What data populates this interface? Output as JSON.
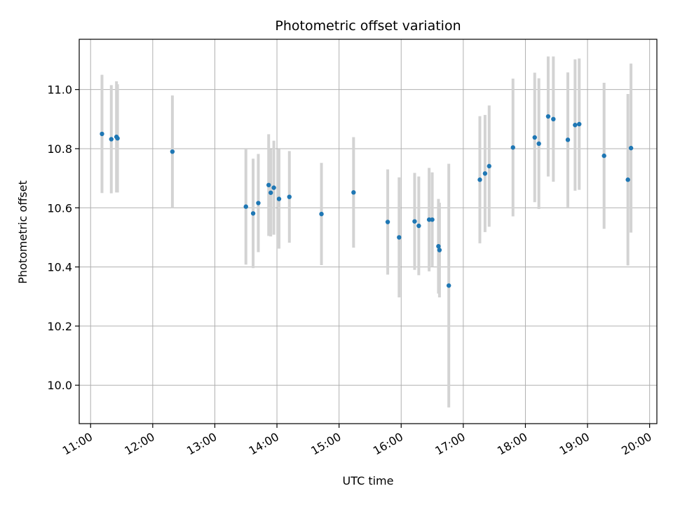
{
  "chart_data": {
    "type": "scatter",
    "title": "Photometric offset variation",
    "xlabel": "UTC time",
    "ylabel": "Photometric offset",
    "xlim": [
      "10:49",
      "20:07"
    ],
    "ylim": [
      9.87,
      11.17
    ],
    "grid": true,
    "error_bar_color": "#d3d3d3",
    "point_color": "#1f77b4",
    "x_ticks": [
      "11:00",
      "12:00",
      "13:00",
      "14:00",
      "15:00",
      "16:00",
      "17:00",
      "18:00",
      "19:00",
      "20:00"
    ],
    "y_ticks": [
      10.0,
      10.2,
      10.4,
      10.6,
      10.8,
      11.0
    ],
    "y_tick_labels": [
      "10.0",
      "10.2",
      "10.4",
      "10.6",
      "10.8",
      "11.0"
    ],
    "points": [
      {
        "time": "11:11",
        "y": 10.85,
        "yerr": 0.2
      },
      {
        "time": "11:20",
        "y": 10.832,
        "yerr": 0.183
      },
      {
        "time": "11:25",
        "y": 10.84,
        "yerr": 0.188
      },
      {
        "time": "11:26",
        "y": 10.835,
        "yerr": 0.183
      },
      {
        "time": "12:19",
        "y": 10.79,
        "yerr": 0.19
      },
      {
        "time": "13:30",
        "y": 10.604,
        "yerr": 0.196
      },
      {
        "time": "13:37",
        "y": 10.581,
        "yerr": 0.185
      },
      {
        "time": "13:42",
        "y": 10.616,
        "yerr": 0.166
      },
      {
        "time": "13:52",
        "y": 10.677,
        "yerr": 0.172
      },
      {
        "time": "13:54",
        "y": 10.651,
        "yerr": 0.148
      },
      {
        "time": "13:57",
        "y": 10.668,
        "yerr": 0.159
      },
      {
        "time": "14:02",
        "y": 10.63,
        "yerr": 0.168
      },
      {
        "time": "14:12",
        "y": 10.637,
        "yerr": 0.155
      },
      {
        "time": "14:43",
        "y": 10.579,
        "yerr": 0.173
      },
      {
        "time": "15:14",
        "y": 10.652,
        "yerr": 0.187
      },
      {
        "time": "15:47",
        "y": 10.552,
        "yerr": 0.178
      },
      {
        "time": "15:58",
        "y": 10.5,
        "yerr": 0.203
      },
      {
        "time": "16:13",
        "y": 10.554,
        "yerr": 0.164
      },
      {
        "time": "16:17",
        "y": 10.539,
        "yerr": 0.167
      },
      {
        "time": "16:27",
        "y": 10.56,
        "yerr": 0.175
      },
      {
        "time": "16:30",
        "y": 10.56,
        "yerr": 0.16
      },
      {
        "time": "16:36",
        "y": 10.47,
        "yerr": 0.16
      },
      {
        "time": "16:37",
        "y": 10.457,
        "yerr": 0.16
      },
      {
        "time": "16:46",
        "y": 10.337,
        "yerr": 0.412
      },
      {
        "time": "17:16",
        "y": 10.695,
        "yerr": 0.215
      },
      {
        "time": "17:21",
        "y": 10.716,
        "yerr": 0.198
      },
      {
        "time": "17:25",
        "y": 10.741,
        "yerr": 0.205
      },
      {
        "time": "17:48",
        "y": 10.804,
        "yerr": 0.233
      },
      {
        "time": "18:09",
        "y": 10.838,
        "yerr": 0.219
      },
      {
        "time": "18:13",
        "y": 10.817,
        "yerr": 0.221
      },
      {
        "time": "18:22",
        "y": 10.909,
        "yerr": 0.203
      },
      {
        "time": "18:27",
        "y": 10.9,
        "yerr": 0.212
      },
      {
        "time": "18:41",
        "y": 10.83,
        "yerr": 0.228
      },
      {
        "time": "18:48",
        "y": 10.88,
        "yerr": 0.222
      },
      {
        "time": "18:52",
        "y": 10.883,
        "yerr": 0.222
      },
      {
        "time": "19:16",
        "y": 10.776,
        "yerr": 0.247
      },
      {
        "time": "19:39",
        "y": 10.695,
        "yerr": 0.29
      },
      {
        "time": "19:42",
        "y": 10.802,
        "yerr": 0.286
      }
    ]
  }
}
